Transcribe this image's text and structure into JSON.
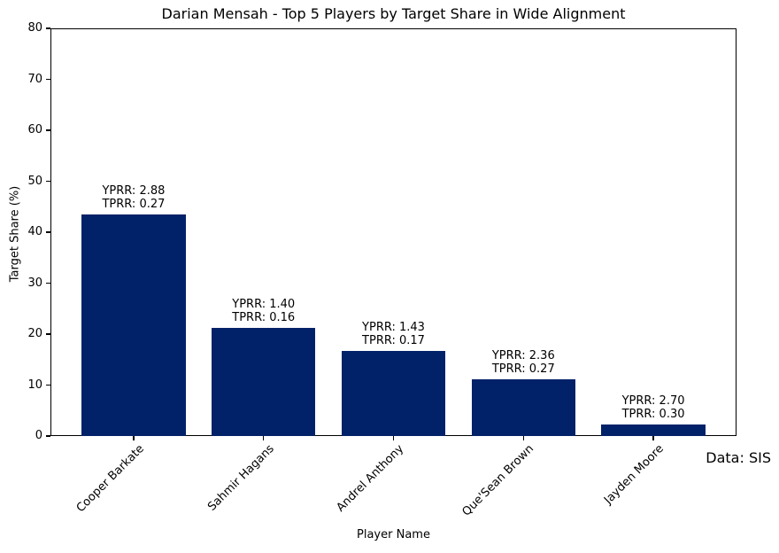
{
  "chart_data": {
    "type": "bar",
    "title": "Darian Mensah - Top 5 Players by Target Share in Wide Alignment",
    "xlabel": "Player Name",
    "ylabel": "Target Share (%)",
    "source_note": "Data: SIS",
    "ylim": [
      0,
      80
    ],
    "yticks": [
      0,
      10,
      20,
      30,
      40,
      50,
      60,
      70,
      80
    ],
    "grid": false,
    "legend": "none",
    "bar_color": "#012169",
    "categories": [
      "Cooper Barkate",
      "Sahmir Hagans",
      "Andrel Anthony",
      "Que'Sean Brown",
      "Jayden Moore"
    ],
    "values": [
      43.4,
      21.3,
      16.7,
      11.2,
      2.3
    ],
    "bar_annotations": [
      [
        "YPRR: 2.88",
        "TPRR: 0.27"
      ],
      [
        "YPRR: 1.40",
        "TPRR: 0.16"
      ],
      [
        "YPRR: 1.43",
        "TPRR: 0.17"
      ],
      [
        "YPRR: 2.36",
        "TPRR: 0.27"
      ],
      [
        "YPRR: 2.70",
        "TPRR: 0.30"
      ]
    ]
  }
}
